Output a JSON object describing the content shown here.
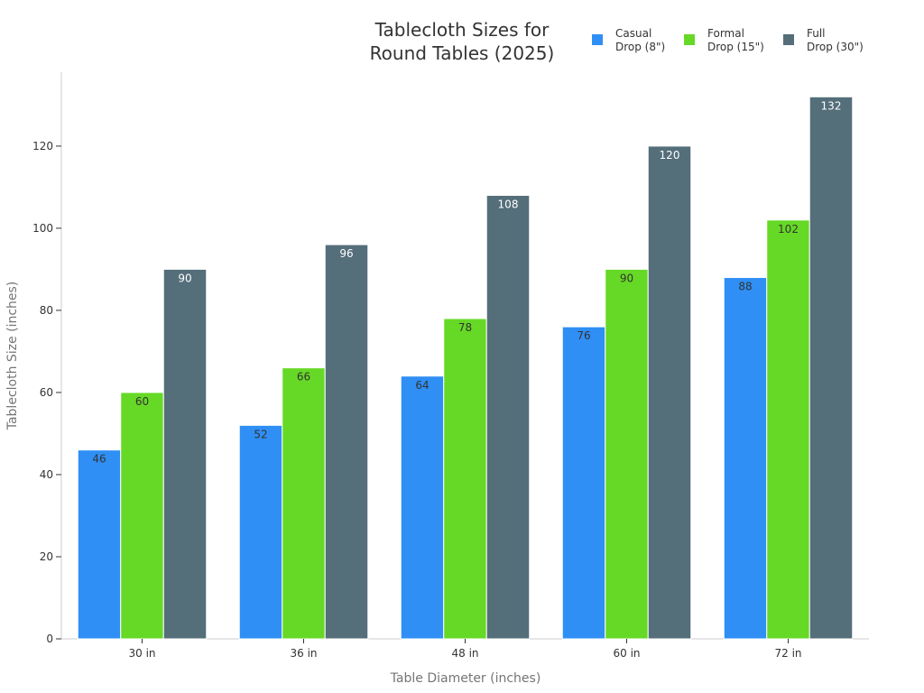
{
  "chart_data": {
    "type": "bar",
    "title": "Tablecloth Sizes for Round Tables (2025)",
    "title_lines": [
      "Tablecloth Sizes for",
      "Round Tables (2025)"
    ],
    "xlabel": "Table Diameter (inches)",
    "ylabel": "Tablecloth Size (inches)",
    "categories": [
      "30 in",
      "36 in",
      "48 in",
      "60 in",
      "72 in"
    ],
    "ylim": [
      0,
      138
    ],
    "yticks": [
      0,
      20,
      40,
      60,
      80,
      100,
      120
    ],
    "grid": false,
    "legend_position": "top-right",
    "series": [
      {
        "name": "Casual Drop (8\")",
        "legend_lines": [
          "Casual",
          "Drop (8\")"
        ],
        "color": "#2f8ff5",
        "label_color": "#333333",
        "values": [
          46,
          52,
          64,
          76,
          88
        ]
      },
      {
        "name": "Formal Drop (15\")",
        "legend_lines": [
          "Formal",
          "Drop (15\")"
        ],
        "color": "#66d926",
        "label_color": "#333333",
        "values": [
          60,
          66,
          78,
          90,
          102
        ]
      },
      {
        "name": "Full Drop (30\")",
        "legend_lines": [
          "Full",
          "Drop (30\")"
        ],
        "color": "#546e7a",
        "label_color": "#ffffff",
        "values": [
          90,
          96,
          108,
          120,
          132
        ]
      }
    ]
  }
}
